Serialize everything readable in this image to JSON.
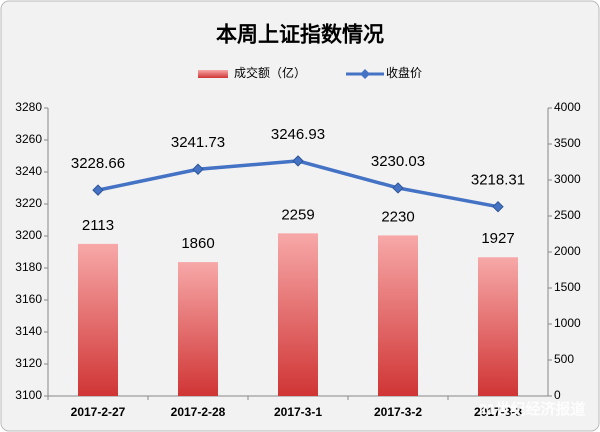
{
  "chart_data": {
    "type": "bar-line",
    "title": "本周上证指数情况",
    "categories": [
      "2017-2-27",
      "2017-2-28",
      "2017-3-1",
      "2017-3-2",
      "2017-3-3"
    ],
    "series": [
      {
        "name": "成交额（亿）",
        "type": "bar",
        "axis": "y2",
        "color": "#e05555",
        "values": [
          2113,
          1860,
          2259,
          2230,
          1927
        ]
      },
      {
        "name": "收盘价",
        "type": "line",
        "color": "#4472c4",
        "values": [
          3228.66,
          3241.73,
          3246.93,
          3230.03,
          3218.31
        ]
      }
    ],
    "ylim": [
      3100,
      3280
    ],
    "yticks": [
      3100,
      3120,
      3140,
      3160,
      3180,
      3200,
      3220,
      3240,
      3260,
      3280
    ],
    "y2lim": [
      0,
      4000
    ],
    "y2ticks": [
      0,
      500,
      1000,
      1500,
      2000,
      2500,
      3000,
      3500,
      4000
    ],
    "grid": false,
    "legend": "top"
  },
  "watermark": "21世纪经济报道"
}
